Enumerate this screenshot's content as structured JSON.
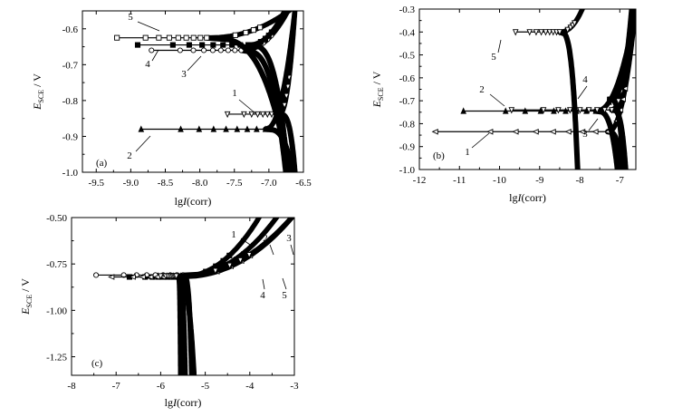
{
  "chart_data": [
    {
      "panel_label": "(a)",
      "type": "line",
      "xlabel": "lgI(corr)",
      "xlabel_parts": {
        "pre": "lg",
        "italic": "I",
        "post": "(corr)"
      },
      "ylabel": "E SCE / V",
      "ylabel_parts": {
        "main": "E",
        "sub": "SCE",
        "post": " / V"
      },
      "xlim": [
        -9.7,
        -6.5
      ],
      "ylim": [
        -1.0,
        -0.55
      ],
      "xticks": [
        -9.5,
        -9.0,
        -8.5,
        -8.0,
        -7.5,
        -7.0,
        -6.5
      ],
      "xtick_labels": [
        "-9.5",
        "-9.0",
        "-8.5",
        "-8.0",
        "-7.5",
        "-7.0",
        "-6.5"
      ],
      "yticks": [
        -1.0,
        -0.9,
        -0.8,
        -0.7,
        -0.6
      ],
      "ytick_labels": [
        "-1.0",
        "-0.9",
        "-0.8",
        "-0.7",
        "-0.6"
      ],
      "grid": false,
      "series": [
        {
          "name": "1",
          "marker": "triangle-down",
          "ecorr": -0.838,
          "x_start": -7.6,
          "icorr": -6.85,
          "x_end_cathodic": -6.62,
          "x_end_anodic": -6.62
        },
        {
          "name": "2",
          "marker": "triangle-up",
          "ecorr": -0.88,
          "x_start": -8.85,
          "icorr": -7.05,
          "x_end_cathodic": -6.65,
          "x_end_anodic": -6.62
        },
        {
          "name": "3",
          "marker": "circle",
          "ecorr": -0.66,
          "x_start": -8.7,
          "icorr": -7.4,
          "x_end_cathodic": -6.75,
          "x_end_anodic": -6.7
        },
        {
          "name": "4",
          "marker": "square-filled",
          "ecorr": -0.645,
          "x_start": -8.9,
          "icorr": -7.3,
          "x_end_cathodic": -6.72,
          "x_end_anodic": -6.75
        },
        {
          "name": "5",
          "marker": "square",
          "ecorr": -0.625,
          "x_start": -9.2,
          "icorr": -7.9,
          "x_end_cathodic": -6.7,
          "x_end_anodic": -6.65
        }
      ],
      "annotations": [
        "1",
        "2",
        "3",
        "4",
        "5"
      ]
    },
    {
      "panel_label": "(b)",
      "type": "line",
      "xlabel": "lgI(corr)",
      "xlabel_parts": {
        "pre": "lg",
        "italic": "I",
        "post": "(corr)"
      },
      "ylabel": "E SCE / V",
      "ylabel_parts": {
        "main": "E",
        "sub": "SCE",
        "post": " / V"
      },
      "xlim": [
        -12,
        -6.6
      ],
      "ylim": [
        -1.0,
        -0.3
      ],
      "xticks": [
        -12,
        -11,
        -10,
        -9,
        -8,
        -7
      ],
      "xtick_labels": [
        "-12",
        "-11",
        "-10",
        "-9",
        "-8",
        "-7"
      ],
      "yticks": [
        -1.0,
        -0.9,
        -0.8,
        -0.7,
        -0.6,
        -0.5,
        -0.4,
        -0.3
      ],
      "ytick_labels": [
        "-1.0",
        "-0.9",
        "-0.8",
        "-0.7",
        "-0.6",
        "-0.5",
        "-0.4",
        "-0.3"
      ],
      "grid": false,
      "series": [
        {
          "name": "1",
          "marker": "triangle-left",
          "ecorr": -0.835,
          "x_start": -11.6,
          "icorr": -7.3,
          "x_end_cathodic": -6.95,
          "x_end_anodic": -6.6
        },
        {
          "name": "2",
          "marker": "triangle-up",
          "ecorr": -0.745,
          "x_start": -10.9,
          "icorr": -7.6,
          "x_end_cathodic": -7.05,
          "x_end_anodic": -6.6
        },
        {
          "name": "3",
          "marker": "triangle-down",
          "ecorr": -0.74,
          "x_start": -9.7,
          "icorr": -7.2,
          "x_end_cathodic": -6.85,
          "x_end_anodic": -6.7
        },
        {
          "name": "4",
          "marker": "square-filled",
          "ecorr": -0.695,
          "x_start": -7.2,
          "icorr": -7.25,
          "x_end_cathodic": -6.9,
          "x_end_anodic": -6.6
        },
        {
          "name": "5",
          "marker": "triangle-down",
          "ecorr": -0.4,
          "x_start": -9.6,
          "icorr": -8.5,
          "x_end_cathodic": -8.05,
          "x_end_anodic": -7.9
        }
      ],
      "annotations": [
        "1",
        "2",
        "3",
        "4",
        "5"
      ]
    },
    {
      "panel_label": "(c)",
      "type": "line",
      "xlabel": "lgI(corr)",
      "xlabel_parts": {
        "pre": "lg",
        "italic": "I",
        "post": "(corr)"
      },
      "ylabel": "E SCE / V",
      "ylabel_parts": {
        "main": "E",
        "sub": "SCE",
        "post": " / V"
      },
      "xlim": [
        -8,
        -3
      ],
      "ylim": [
        -1.35,
        -0.5
      ],
      "xticks": [
        -8,
        -7,
        -6,
        -5,
        -4,
        -3
      ],
      "xtick_labels": [
        "-8",
        "-7",
        "-6",
        "-5",
        "-4",
        "-3"
      ],
      "yticks": [
        -1.25,
        -1.0,
        -0.75,
        -0.5
      ],
      "ytick_labels": [
        "-1.25",
        "-1.00",
        "-0.75",
        "-0.50"
      ],
      "grid": false,
      "series": [
        {
          "name": "1",
          "marker": "square-filled",
          "ecorr": -0.82,
          "x_start": -6.7,
          "icorr": -5.6,
          "x_end_cathodic": -5.55,
          "x_end_anodic": -3.75
        },
        {
          "name": "2",
          "marker": "triangle-up",
          "ecorr": -0.815,
          "x_start": -6.3,
          "icorr": -5.55,
          "x_end_cathodic": -5.5,
          "x_end_anodic": -3.35
        },
        {
          "name": "3",
          "marker": "circle",
          "ecorr": -0.81,
          "x_start": -7.45,
          "icorr": -5.5,
          "x_end_cathodic": -5.3,
          "x_end_anodic": -3.0
        },
        {
          "name": "4",
          "marker": "triangle-left",
          "ecorr": -0.82,
          "x_start": -7.1,
          "icorr": -5.6,
          "x_end_cathodic": -5.45,
          "x_end_anodic": -3.0
        },
        {
          "name": "5",
          "marker": "triangle-down",
          "ecorr": -0.815,
          "x_start": -6.0,
          "icorr": -5.65,
          "x_end_cathodic": -5.25,
          "x_end_anodic": -3.0
        }
      ],
      "annotations": [
        "1",
        "2",
        "3",
        "4",
        "5"
      ]
    }
  ]
}
